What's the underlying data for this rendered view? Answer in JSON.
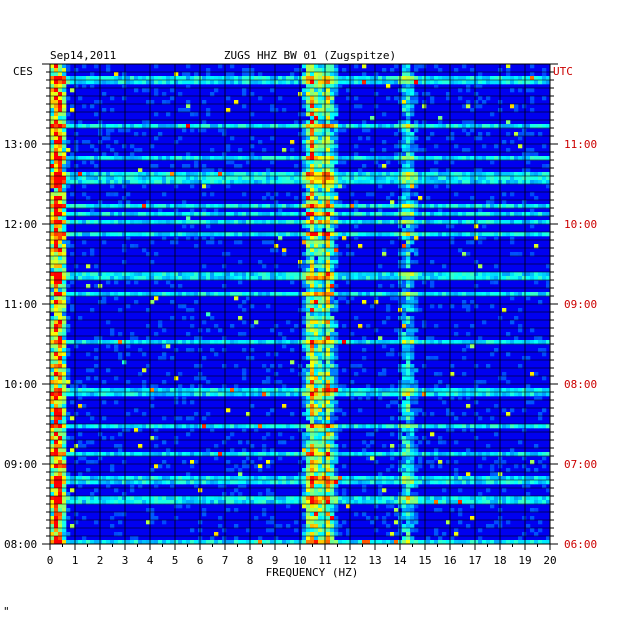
{
  "chart_data": {
    "type": "heatmap",
    "title_left": "Sep14,2011",
    "title_center": "ZUGS HHZ BW 01 (Zugspitze)",
    "left_axis_label": "CES",
    "right_axis_label": "UTC",
    "xlabel": "FREQUENCY (HZ)",
    "xlim": [
      0,
      20
    ],
    "x_ticks": [
      0,
      1,
      2,
      3,
      4,
      5,
      6,
      7,
      8,
      9,
      10,
      11,
      12,
      13,
      14,
      15,
      16,
      17,
      18,
      19,
      20
    ],
    "x_tick_labels": [
      "0",
      "1",
      "2",
      "3",
      "4",
      "5",
      "6",
      "7",
      "8",
      "9",
      "10",
      "11",
      "12",
      "13",
      "14",
      "15",
      "16",
      "17",
      "18",
      "19",
      "20"
    ],
    "left_time_ticks": [
      {
        "hour": 13,
        "label": "13:00"
      },
      {
        "hour": 12,
        "label": "12:00"
      },
      {
        "hour": 11,
        "label": "11:00"
      },
      {
        "hour": 10,
        "label": "10:00"
      },
      {
        "hour": 9,
        "label": "09:00"
      },
      {
        "hour": 8,
        "label": "08:00"
      }
    ],
    "right_time_ticks": [
      {
        "hour": 11,
        "label": "11:00"
      },
      {
        "hour": 10,
        "label": "10:00"
      },
      {
        "hour": 9,
        "label": "09:00"
      },
      {
        "hour": 8,
        "label": "08:00"
      },
      {
        "hour": 7,
        "label": "07:00"
      },
      {
        "hour": 6,
        "label": "06:00"
      }
    ],
    "time_range_local": [
      8.0,
      14.0
    ],
    "grid": true,
    "colormap": [
      "#000080",
      "#0000ff",
      "#00ffff",
      "#ffff00",
      "#ff0000"
    ],
    "energy_bands_hz": [
      {
        "center": 0.3,
        "intensity": 0.9
      },
      {
        "center": 10.5,
        "intensity": 0.6
      },
      {
        "center": 11.1,
        "intensity": 0.55
      },
      {
        "center": 14.3,
        "intensity": 0.3
      }
    ]
  },
  "footer_mark": "\""
}
